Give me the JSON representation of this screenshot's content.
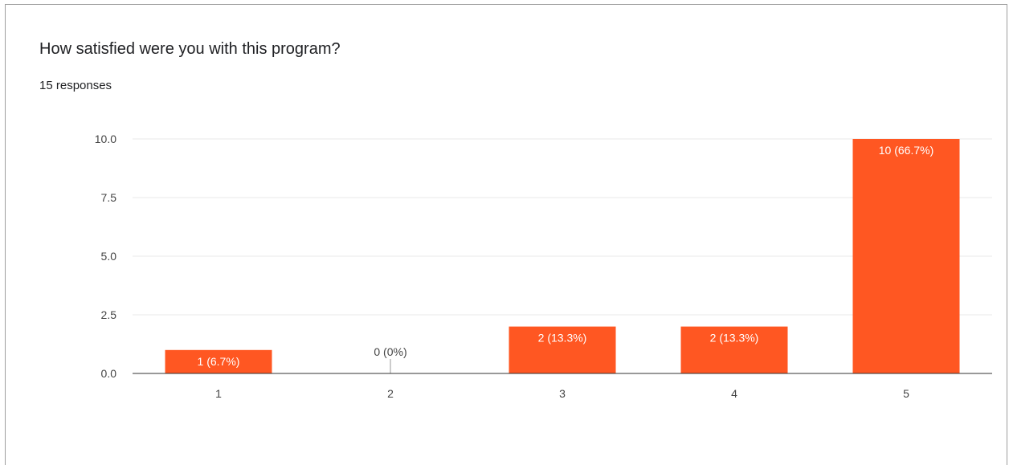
{
  "question": "How satisfied were you with this program?",
  "responses": "15 responses",
  "colors": {
    "bar": "#ff5722",
    "grid": "#e8e8e8",
    "axis": "#333333",
    "label_inside": "#ffffff",
    "label_outside": "#444444"
  },
  "chart_data": {
    "type": "bar",
    "categories": [
      "1",
      "2",
      "3",
      "4",
      "5"
    ],
    "values": [
      1,
      0,
      2,
      2,
      10
    ],
    "data_labels": [
      "1 (6.7%)",
      "0 (0%)",
      "2 (13.3%)",
      "2 (13.3%)",
      "10 (66.7%)"
    ],
    "ylim": [
      0,
      10
    ],
    "yticks": [
      0,
      2.5,
      5,
      7.5,
      10
    ],
    "ytick_labels": [
      "0.0",
      "2.5",
      "5.0",
      "7.5",
      "10.0"
    ],
    "grid": true,
    "legend": "none"
  }
}
